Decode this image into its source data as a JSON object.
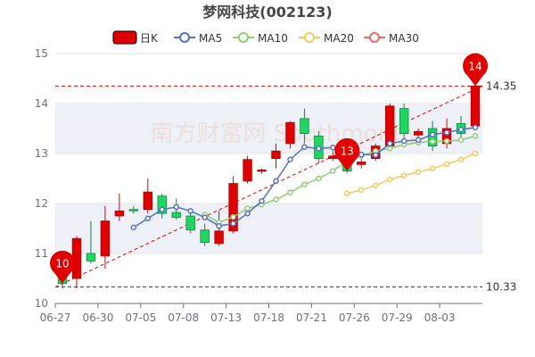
{
  "colors": {
    "up": "#e00000",
    "down": "#1ed760",
    "ma5": "#5470c6",
    "ma10": "#91cc75",
    "ma20": "#fac858",
    "ma30": "#ee6666",
    "ref": "#e00000",
    "band": "#eef0f8"
  },
  "watermark": "南方财富网 Southmoney",
  "chart_data": {
    "type": "candlestick",
    "title": "梦网科技(002123)",
    "legend": [
      {
        "key": "kline",
        "label": "日K",
        "icon": "rect-icon"
      },
      {
        "key": "ma5",
        "label": "MA5",
        "icon": "circle-line-icon"
      },
      {
        "key": "ma10",
        "label": "MA10",
        "icon": "circle-line-icon"
      },
      {
        "key": "ma20",
        "label": "MA20",
        "icon": "circle-line-icon"
      },
      {
        "key": "ma30",
        "label": "MA30",
        "icon": "circle-line-icon"
      }
    ],
    "ylim": [
      10,
      15
    ],
    "yticks": [
      10,
      11,
      12,
      13,
      14,
      15
    ],
    "xtick_labels": [
      {
        "i": 0,
        "label": "06-27"
      },
      {
        "i": 3,
        "label": "06-30"
      },
      {
        "i": 6,
        "label": "07-05"
      },
      {
        "i": 9,
        "label": "07-08"
      },
      {
        "i": 12,
        "label": "07-13"
      },
      {
        "i": 15,
        "label": "07-18"
      },
      {
        "i": 18,
        "label": "07-21"
      },
      {
        "i": 21,
        "label": "07-26"
      },
      {
        "i": 24,
        "label": "07-29"
      },
      {
        "i": 27,
        "label": "08-03"
      }
    ],
    "candles": [
      {
        "o": 10.5,
        "c": 10.4,
        "l": 10.3,
        "h": 10.6
      },
      {
        "o": 10.5,
        "c": 11.3,
        "l": 10.3,
        "h": 11.35
      },
      {
        "o": 11.0,
        "c": 10.85,
        "l": 10.8,
        "h": 11.65
      },
      {
        "o": 10.95,
        "c": 11.65,
        "l": 10.7,
        "h": 11.95
      },
      {
        "o": 11.75,
        "c": 11.85,
        "l": 11.65,
        "h": 12.2
      },
      {
        "o": 11.88,
        "c": 11.87,
        "l": 11.8,
        "h": 11.95
      },
      {
        "o": 11.88,
        "c": 12.23,
        "l": 11.8,
        "h": 12.5
      },
      {
        "o": 12.15,
        "c": 11.8,
        "l": 11.7,
        "h": 12.2
      },
      {
        "o": 11.82,
        "c": 11.72,
        "l": 11.68,
        "h": 12.1
      },
      {
        "o": 11.75,
        "c": 11.47,
        "l": 11.4,
        "h": 11.8
      },
      {
        "o": 11.47,
        "c": 11.22,
        "l": 11.15,
        "h": 11.6
      },
      {
        "o": 11.2,
        "c": 11.45,
        "l": 11.15,
        "h": 11.85
      },
      {
        "o": 11.45,
        "c": 12.4,
        "l": 11.4,
        "h": 12.55
      },
      {
        "o": 12.45,
        "c": 12.88,
        "l": 12.4,
        "h": 12.95
      },
      {
        "o": 12.66,
        "c": 12.67,
        "l": 12.6,
        "h": 12.7
      },
      {
        "o": 12.9,
        "c": 13.05,
        "l": 12.7,
        "h": 13.2
      },
      {
        "o": 13.2,
        "c": 13.62,
        "l": 13.1,
        "h": 13.65
      },
      {
        "o": 13.7,
        "c": 13.4,
        "l": 13.2,
        "h": 13.9
      },
      {
        "o": 13.35,
        "c": 12.9,
        "l": 12.8,
        "h": 13.45
      },
      {
        "o": 12.9,
        "c": 12.95,
        "l": 12.85,
        "h": 13.05
      },
      {
        "o": 12.9,
        "c": 12.65,
        "l": 12.6,
        "h": 13.05
      },
      {
        "o": 12.78,
        "c": 12.83,
        "l": 12.7,
        "h": 12.9
      },
      {
        "o": 12.9,
        "c": 13.15,
        "l": 12.85,
        "h": 13.2
      },
      {
        "o": 13.15,
        "c": 13.95,
        "l": 13.1,
        "h": 14.0
      },
      {
        "o": 13.9,
        "c": 13.4,
        "l": 13.3,
        "h": 14.0
      },
      {
        "o": 13.37,
        "c": 13.44,
        "l": 13.3,
        "h": 13.5
      },
      {
        "o": 13.5,
        "c": 13.15,
        "l": 13.05,
        "h": 13.65
      },
      {
        "o": 13.2,
        "c": 13.5,
        "l": 13.1,
        "h": 13.7
      },
      {
        "o": 13.6,
        "c": 13.4,
        "l": 13.3,
        "h": 13.75
      },
      {
        "o": 13.55,
        "c": 14.35,
        "l": 13.5,
        "h": 14.4
      }
    ],
    "ma5": [
      null,
      null,
      null,
      null,
      null,
      11.52,
      11.7,
      11.88,
      11.93,
      11.85,
      11.72,
      11.55,
      11.6,
      11.8,
      12.05,
      12.45,
      12.88,
      13.13,
      13.1,
      13.12,
      13.1,
      12.98,
      12.97,
      13.2,
      13.25,
      13.27,
      13.38,
      13.42,
      13.48,
      13.52
    ],
    "ma10": [
      null,
      null,
      null,
      null,
      null,
      null,
      null,
      null,
      null,
      null,
      11.78,
      11.62,
      11.73,
      11.9,
      11.98,
      12.08,
      12.22,
      12.38,
      12.5,
      12.65,
      12.85,
      12.95,
      13.05,
      13.1,
      13.18,
      13.22,
      13.24,
      13.25,
      13.27,
      13.35
    ],
    "ma20": [
      null,
      null,
      null,
      null,
      null,
      null,
      null,
      null,
      null,
      null,
      null,
      null,
      null,
      null,
      null,
      null,
      null,
      null,
      null,
      null,
      12.2,
      12.27,
      12.36,
      12.48,
      12.56,
      12.63,
      12.7,
      12.79,
      12.88,
      13.0
    ],
    "ref_lines": [
      {
        "value": 14.35,
        "label": "14.35"
      },
      {
        "value": 10.33,
        "label": "10.33"
      }
    ],
    "markers": [
      {
        "i": 0,
        "value": 10.4,
        "label": "10"
      },
      {
        "i": 20,
        "value": 12.65,
        "label": "13"
      },
      {
        "i": 29,
        "value": 14.35,
        "label": "14"
      }
    ],
    "trend_line": {
      "from": {
        "i": 0,
        "value": 10.33
      },
      "to": {
        "i": 29,
        "value": 14.35
      }
    }
  }
}
